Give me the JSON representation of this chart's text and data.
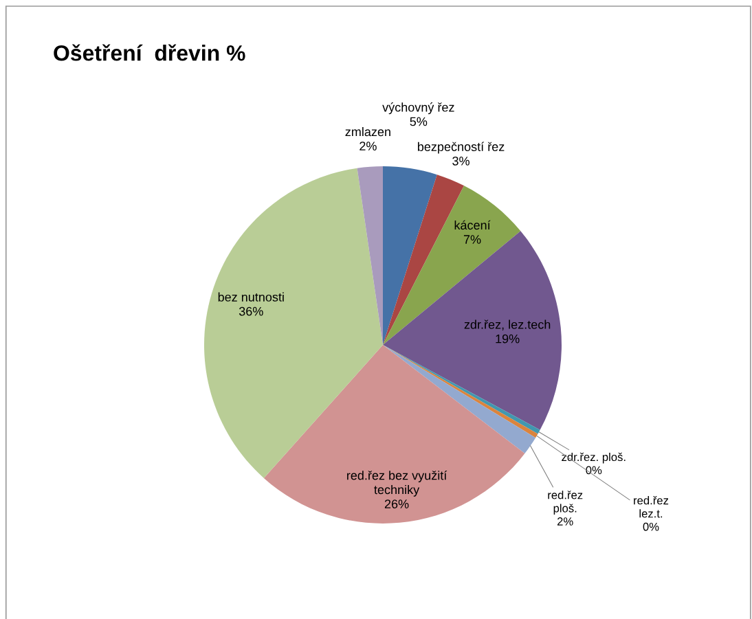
{
  "chart_data": {
    "type": "pie",
    "title": "Ošetření  dřevin %",
    "categories": [
      "výchovný řez",
      "bezpečností řez",
      "kácení",
      "zdr.řez, lez.tech",
      "zdr.řez. ploš.",
      "red.řez\nlez.t.",
      "red.řez\nploš.",
      "red.řez bez využití\ntechniky",
      "bez nutnosti",
      "zmlazen"
    ],
    "values": [
      4.9,
      2.6,
      6.5,
      18.9,
      0.4,
      0.4,
      1.7,
      26.2,
      36.1,
      2.3
    ],
    "value_labels": [
      "5%",
      "3%",
      "7%",
      "19%",
      "0%",
      "0%",
      "2%",
      "26%",
      "36%",
      "2%"
    ],
    "colors": [
      "#4572a7",
      "#aa4643",
      "#89a54e",
      "#71588f",
      "#4198af",
      "#db843d",
      "#93a9cf",
      "#d19392",
      "#b9cd96",
      "#a99bbd"
    ]
  }
}
